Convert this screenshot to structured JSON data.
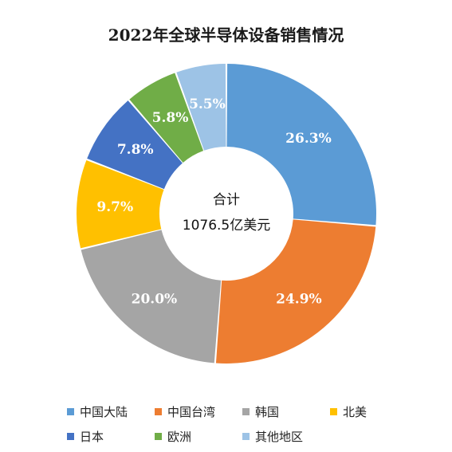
{
  "chart_data": {
    "type": "pie",
    "donut": true,
    "title": "2022年全球半导体设备销售情况",
    "center_label": {
      "line1": "合计",
      "line2": "1076.5亿美元"
    },
    "slices": [
      {
        "label": "中国大陆",
        "value": 26.3,
        "value_label": "26.3%",
        "color": "#5B9BD5"
      },
      {
        "label": "中国台湾",
        "value": 24.9,
        "value_label": "24.9%",
        "color": "#ED7D31"
      },
      {
        "label": "韩国",
        "value": 20.0,
        "value_label": "20.0%",
        "color": "#A5A5A5"
      },
      {
        "label": "北美",
        "value": 9.7,
        "value_label": "9.7%",
        "color": "#FFC000"
      },
      {
        "label": "日本",
        "value": 7.8,
        "value_label": "7.8%",
        "color": "#4472C4"
      },
      {
        "label": "欧洲",
        "value": 5.8,
        "value_label": "5.8%",
        "color": "#70AD47"
      },
      {
        "label": "其他地区",
        "value": 5.5,
        "value_label": "5.5%",
        "color": "#9DC3E6"
      }
    ],
    "legend": {
      "position": "bottom"
    }
  }
}
